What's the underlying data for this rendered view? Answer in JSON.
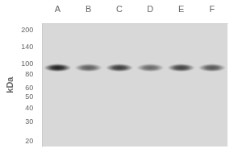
{
  "chart_data": {
    "type": "scatter",
    "y_label": "kDa",
    "categories": [
      "A",
      "B",
      "C",
      "D",
      "E",
      "F"
    ],
    "values": [
      92,
      92,
      92,
      92,
      92,
      92
    ],
    "intensities": [
      1.0,
      0.65,
      0.85,
      0.6,
      0.82,
      0.7
    ],
    "color": "#1a1a1a",
    "log": "y",
    "ylim": [
      18,
      230
    ],
    "yticks": [
      200,
      140,
      100,
      80,
      60,
      50,
      40,
      30,
      20
    ],
    "grid": false
  }
}
